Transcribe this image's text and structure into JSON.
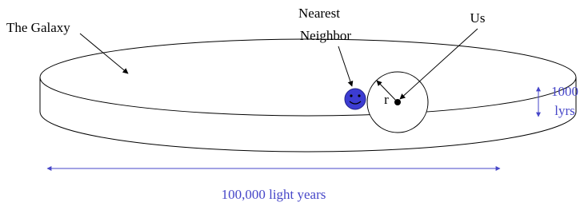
{
  "labels": {
    "galaxy": "The Galaxy",
    "neighbor": [
      "Nearest",
      "Neighbor"
    ],
    "us": "Us",
    "radius": "r",
    "thickness": [
      "1000",
      "lyrs"
    ],
    "diameter": "100,000 light years"
  }
}
